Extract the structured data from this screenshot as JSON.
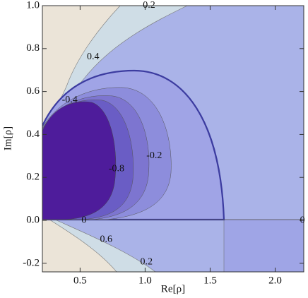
{
  "chart_data": {
    "type": "contour",
    "x_label": "Re[ρ]",
    "y_label": "Im[ρ]",
    "xlim": [
      0.21,
      2.22
    ],
    "ylim": [
      -0.24,
      1.0
    ],
    "xticks": [
      0.5,
      {
        "value": 1,
        "label": "1.0"
      },
      1.5,
      {
        "value": 2,
        "label": "2.0"
      }
    ],
    "yticks": [
      -0.2,
      {
        "value": 0,
        "label": "0.0"
      },
      0.2,
      0.4,
      0.6,
      0.8,
      {
        "value": 1,
        "label": "1.0"
      }
    ],
    "contour_labels": [
      {
        "label": "0.2",
        "x": 1.03,
        "y": 1.0
      },
      {
        "label": "0.4",
        "x": 0.6,
        "y": 0.76
      },
      {
        "label": "-0.4",
        "x": 0.42,
        "y": 0.56
      },
      {
        "label": "-0.8",
        "x": 0.78,
        "y": 0.24
      },
      {
        "label": "-0.2",
        "x": 1.07,
        "y": 0.3
      },
      {
        "label": "0",
        "x": 0.53,
        "y": 0.0
      },
      {
        "label": "0",
        "x": 2.21,
        "y": 0.0
      },
      {
        "label": "0.6",
        "x": 0.7,
        "y": -0.09
      },
      {
        "label": "0.2",
        "x": 1.01,
        "y": -0.195
      }
    ]
  }
}
